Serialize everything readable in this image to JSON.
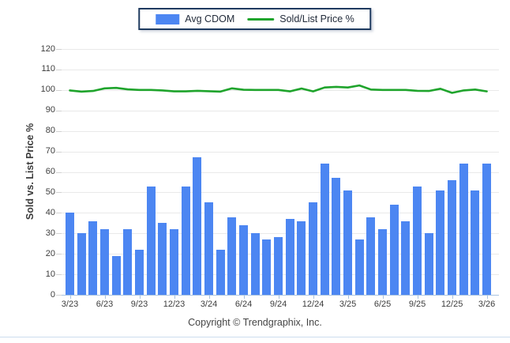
{
  "footer": {
    "copyright": "Copyright © Trendgraphix, Inc."
  },
  "chart_data": {
    "type": "combo",
    "title": "",
    "ylabel": "Sold vs. List Price %",
    "ylim": [
      0,
      120
    ],
    "ytick_step": 10,
    "grid": true,
    "legend_position": "top",
    "categories": [
      "3/23",
      "4/23",
      "5/23",
      "6/23",
      "7/23",
      "8/23",
      "9/23",
      "10/23",
      "11/23",
      "12/23",
      "1/24",
      "2/24",
      "3/24",
      "4/24",
      "5/24",
      "6/24",
      "7/24",
      "8/24",
      "9/24",
      "10/24",
      "11/24",
      "12/24",
      "1/25",
      "2/25",
      "3/25",
      "4/25",
      "5/25",
      "6/25",
      "7/25",
      "8/25",
      "9/25",
      "10/25",
      "11/25",
      "12/25",
      "1/26",
      "2/26",
      "3/26"
    ],
    "x_tick_labels": [
      "3/23",
      "6/23",
      "9/23",
      "12/23",
      "3/24",
      "6/24",
      "9/24",
      "12/24",
      "3/25",
      "6/25",
      "9/25",
      "12/25",
      "3/26"
    ],
    "x_tick_every": 3,
    "series": [
      {
        "name": "Avg CDOM",
        "type": "bar",
        "color": "#4c86f2",
        "values": [
          40,
          30,
          36,
          32,
          19,
          32,
          22,
          53,
          35,
          32,
          53,
          67,
          45,
          22,
          38,
          34,
          30,
          27,
          28,
          37,
          36,
          45,
          64,
          57,
          51,
          27,
          38,
          32,
          44,
          36,
          53,
          30,
          51,
          56,
          64,
          51,
          64
        ]
      },
      {
        "name": "Sold/List Price %",
        "type": "line",
        "color": "#1fa42c",
        "values": [
          99.8,
          99.2,
          99.5,
          100.8,
          101,
          100.3,
          100,
          100,
          99.8,
          99.3,
          99.3,
          99.6,
          99.4,
          99.2,
          100.8,
          100.1,
          100,
          100,
          100,
          99.3,
          100.7,
          99.3,
          101.2,
          101.5,
          101.2,
          102.2,
          100.2,
          100,
          100,
          100,
          99.6,
          99.5,
          100.6,
          98.6,
          99.8,
          100.2,
          99.3
        ]
      }
    ]
  }
}
